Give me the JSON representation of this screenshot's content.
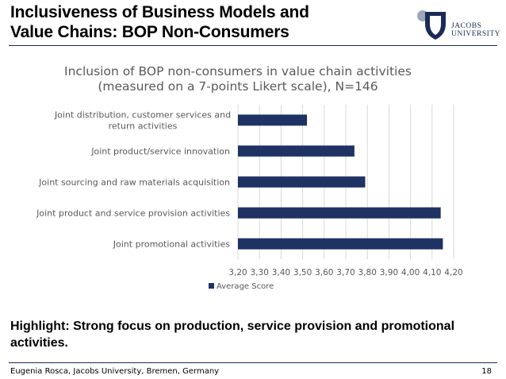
{
  "slide": {
    "title_line1": "Inclusiveness of Business Models and",
    "title_line2": "Value Chains: BOP Non-Consumers",
    "highlight_line1": "Highlight: Strong focus on production, service provision and promotional",
    "highlight_line2": "activities.",
    "footer_left": "Eugenia Rosca, Jacobs University, Bremen, Germany",
    "page_number": "18"
  },
  "logo": {
    "line1": "JACOBS",
    "line2": "UNIVERSITY",
    "color": "#1b2b56",
    "dot_color": "#9ea7b8"
  },
  "chart_data": {
    "type": "bar",
    "orientation": "horizontal",
    "title_line1": "Inclusion of BOP non-consumers in value chain activities",
    "title_line2": "(measured on a 7-points Likert scale), N=146",
    "categories": [
      [
        "Joint distribution, customer services and",
        "return activities"
      ],
      [
        "Joint product/service innovation"
      ],
      [
        "Joint sourcing and raw materials acquisition"
      ],
      [
        "Joint product and service provision activities"
      ],
      [
        "Joint promotional activities"
      ]
    ],
    "series": [
      {
        "name": "Average Score",
        "values": [
          3.52,
          3.74,
          3.79,
          4.14,
          4.15
        ]
      }
    ],
    "xlim": [
      3.2,
      4.2
    ],
    "ticks": [
      3.2,
      3.3,
      3.4,
      3.5,
      3.6,
      3.7,
      3.8,
      3.9,
      4.0,
      4.1,
      4.2
    ],
    "tick_labels": [
      "3,20",
      "3,30",
      "3,40",
      "3,50",
      "3,60",
      "3,70",
      "3,80",
      "3,90",
      "4,00",
      "4,10",
      "4,20"
    ],
    "grid": true,
    "legend": "bottom",
    "bar_color": "#1f3264",
    "grid_color": "#d9d9d9"
  }
}
